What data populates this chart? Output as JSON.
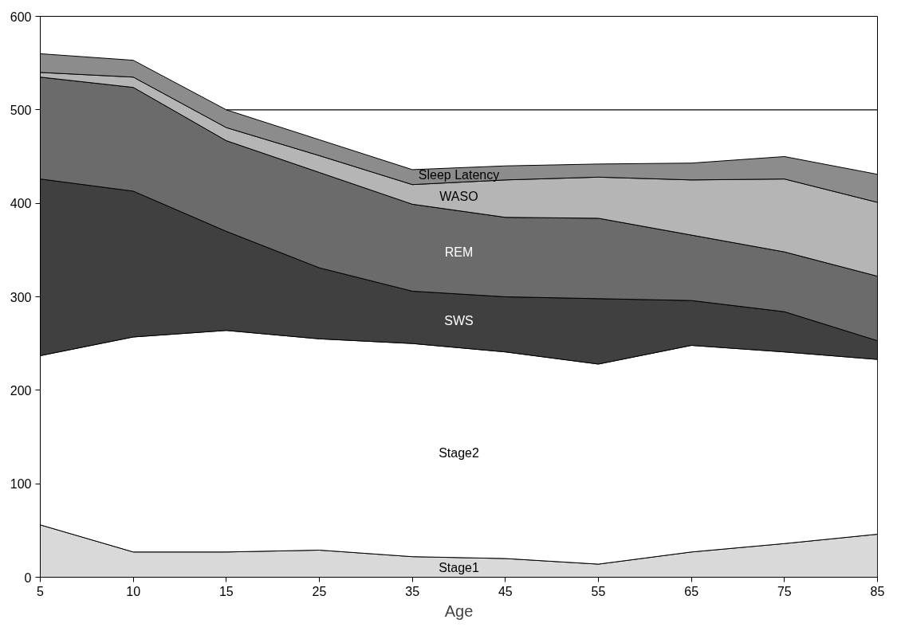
{
  "chart_data": {
    "type": "area",
    "stacked": true,
    "xlabel": "Age",
    "categories": [
      "5",
      "10",
      "15",
      "25",
      "35",
      "45",
      "55",
      "65",
      "75",
      "85"
    ],
    "ylim": [
      0,
      600
    ],
    "yticks": [
      0,
      100,
      200,
      300,
      400,
      500,
      600
    ],
    "grid": false,
    "legend": false,
    "series": [
      {
        "name": "Stage1",
        "color": "#d9d9d9",
        "values": [
          56,
          27,
          27,
          29,
          22,
          20,
          14,
          27,
          36,
          46
        ]
      },
      {
        "name": "Stage2",
        "color": "#ffffff",
        "values": [
          181,
          230,
          237,
          226,
          228,
          221,
          214,
          221,
          205,
          187
        ]
      },
      {
        "name": "SWS",
        "color": "#404040",
        "values": [
          189,
          156,
          106,
          76,
          56,
          59,
          70,
          48,
          43,
          20
        ]
      },
      {
        "name": "REM",
        "color": "#6b6b6b",
        "values": [
          109,
          111,
          97,
          102,
          93,
          85,
          86,
          70,
          64,
          69
        ]
      },
      {
        "name": "WASO",
        "color": "#b5b5b5",
        "values": [
          5,
          11,
          14,
          18,
          21,
          40,
          44,
          59,
          78,
          79
        ]
      },
      {
        "name": "Sleep Latency",
        "color": "#8c8c8c",
        "values": [
          20,
          18,
          19,
          17,
          16,
          15,
          14,
          18,
          24,
          30
        ]
      },
      {
        "type": "line",
        "color": "#000000",
        "values": [
          null,
          null,
          500,
          500,
          500,
          500,
          500,
          500,
          500,
          500
        ]
      }
    ]
  }
}
